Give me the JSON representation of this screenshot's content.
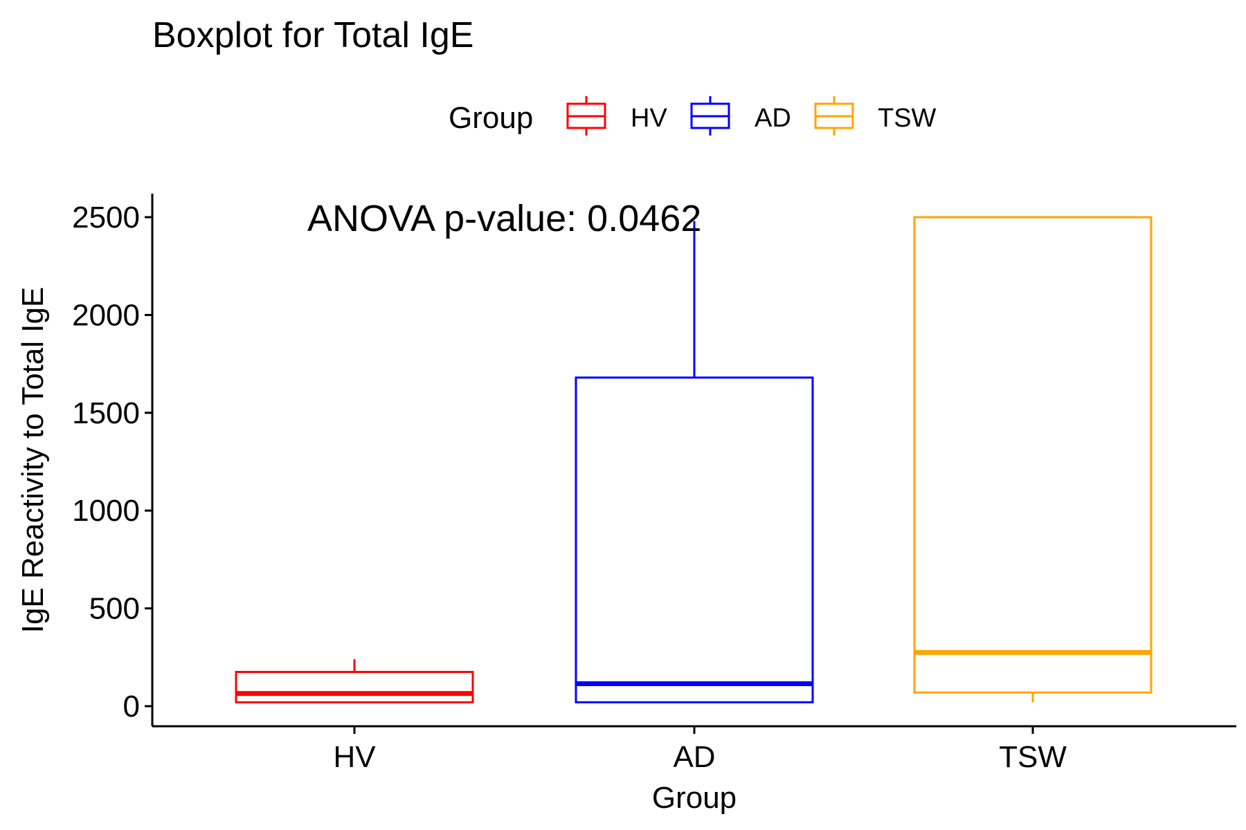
{
  "chart_data": {
    "type": "boxplot",
    "title": "Boxplot for Total IgE",
    "xlabel": "Group",
    "ylabel": "IgE Reactivity to Total IgE",
    "ylim": [
      -100,
      2620
    ],
    "yticks": [
      0,
      500,
      1000,
      1500,
      2000,
      2500
    ],
    "grid": false,
    "annotation": "ANOVA p-value: 0.0462",
    "legend": {
      "title": "Group",
      "position": "top",
      "entries": [
        "HV",
        "AD",
        "TSW"
      ]
    },
    "categories": [
      "HV",
      "AD",
      "TSW"
    ],
    "series": [
      {
        "category": "HV",
        "color": "#FF0000",
        "whisker_low": 20,
        "q1": 20,
        "median": 65,
        "q3": 175,
        "whisker_high": 240
      },
      {
        "category": "AD",
        "color": "#0000FF",
        "whisker_low": 20,
        "q1": 20,
        "median": 115,
        "q3": 1680,
        "whisker_high": 2480
      },
      {
        "category": "TSW",
        "color": "#FFA500",
        "whisker_low": 20,
        "q1": 70,
        "median": 275,
        "q3": 2500,
        "whisker_high": 2500
      }
    ]
  }
}
